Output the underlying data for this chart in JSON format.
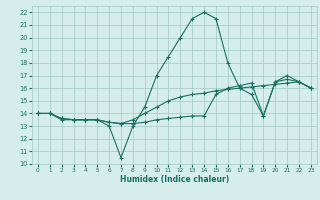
{
  "xlabel": "Humidex (Indice chaleur)",
  "xlim": [
    -0.5,
    23.5
  ],
  "ylim": [
    10,
    22.5
  ],
  "yticks": [
    10,
    11,
    12,
    13,
    14,
    15,
    16,
    17,
    18,
    19,
    20,
    21,
    22
  ],
  "xticks": [
    0,
    1,
    2,
    3,
    4,
    5,
    6,
    7,
    8,
    9,
    10,
    11,
    12,
    13,
    14,
    15,
    16,
    17,
    18,
    19,
    20,
    21,
    22,
    23
  ],
  "bg_color": "#d5eeeb",
  "grid_color": "#a0c8c4",
  "line_color": "#1a7060",
  "line1_x": [
    0,
    1,
    2,
    3,
    4,
    5,
    6,
    7,
    8,
    9,
    10,
    11,
    12,
    13,
    14,
    15,
    16,
    17,
    18,
    19,
    20,
    21,
    22,
    23
  ],
  "line1_y": [
    14,
    14,
    13.5,
    13.5,
    13.5,
    13.5,
    13,
    10.5,
    13,
    14.5,
    17,
    18.5,
    20,
    21.5,
    22,
    21.5,
    18,
    16,
    15.5,
    13.8,
    16.5,
    17,
    16.5,
    16
  ],
  "line2_x": [
    0,
    1,
    2,
    3,
    4,
    5,
    6,
    7,
    8,
    9,
    10,
    11,
    12,
    13,
    14,
    15,
    16,
    17,
    18,
    19,
    20,
    21,
    22,
    23
  ],
  "line2_y": [
    14,
    14,
    13.6,
    13.5,
    13.5,
    13.5,
    13.3,
    13.2,
    13.2,
    13.3,
    13.5,
    13.6,
    13.7,
    13.8,
    13.8,
    15.5,
    16,
    16.2,
    16.4,
    13.8,
    16.5,
    16.7,
    16.5,
    16
  ],
  "line3_x": [
    0,
    1,
    2,
    3,
    4,
    5,
    6,
    7,
    8,
    9,
    10,
    11,
    12,
    13,
    14,
    15,
    16,
    17,
    18,
    19,
    20,
    21,
    22,
    23
  ],
  "line3_y": [
    14,
    14,
    13.6,
    13.5,
    13.5,
    13.5,
    13.3,
    13.2,
    13.5,
    14,
    14.5,
    15,
    15.3,
    15.5,
    15.6,
    15.8,
    15.9,
    16,
    16.1,
    16.2,
    16.3,
    16.4,
    16.5,
    16
  ]
}
